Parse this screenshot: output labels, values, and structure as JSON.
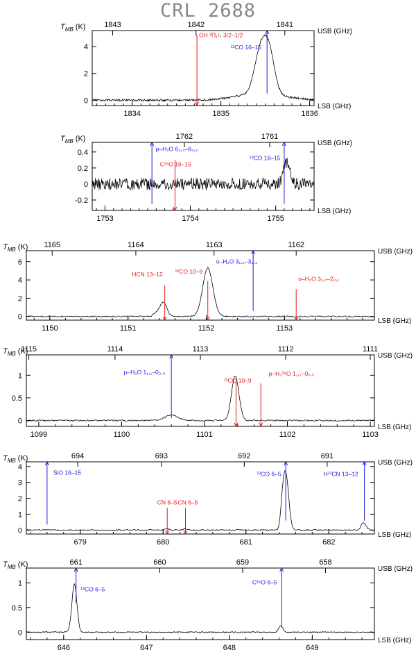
{
  "title": "CRL 2688",
  "colors": {
    "red": "#e0191c",
    "blue": "#1c1ce0",
    "spectrum": "#000000"
  },
  "chart_data": [
    {
      "type": "line",
      "ylabel_main": "T",
      "ylabel_sub": "MB",
      "ylabel_unit": "(K)",
      "usb_label": "USB (GHz)",
      "lsb_label": "LSB (GHz)",
      "xlim": [
        1833.55,
        1836.05
      ],
      "ylim": [
        -0.4,
        5.2
      ],
      "usb_ticks": [
        {
          "v": 1843,
          "x": 1833.78
        },
        {
          "v": 1842,
          "x": 1834.72
        },
        {
          "v": 1841,
          "x": 1835.72
        }
      ],
      "lsb_ticks": [
        1834,
        1835,
        1836
      ],
      "y_ticks": [
        0,
        2,
        4
      ],
      "peaks": [
        {
          "x": 1835.45,
          "w": 0.07,
          "a": 3.3
        },
        {
          "x": 1835.55,
          "w": 0.06,
          "a": 2.6
        },
        {
          "x": 1835.45,
          "w": 0.28,
          "a": 0.45
        }
      ],
      "noise": 0.08,
      "seed": 11,
      "lines": [
        {
          "x": 1834.73,
          "color": "red",
          "from": 4.9,
          "to": -0.4,
          "arrow": "down",
          "label": "OH ²Π₁/₂ 3/2–1/2",
          "label_x": 1834.73,
          "label_y": 4.7,
          "anchor": "start"
        },
        {
          "x": 1835.52,
          "color": "blue",
          "from": 0.5,
          "to": 5.2,
          "arrow": "up",
          "label": "¹²CO 16–15",
          "label_x": 1835.48,
          "label_y": 3.8,
          "anchor": "end"
        }
      ]
    },
    {
      "type": "line",
      "ylabel_main": "T",
      "ylabel_sub": "MB",
      "ylabel_unit": "(K)",
      "usb_label": "USB (GHz)",
      "lsb_label": "LSB (GHz)",
      "xlim": [
        1752.85,
        1755.45
      ],
      "ylim": [
        -0.33,
        0.52
      ],
      "usb_ticks": [
        {
          "v": 1762,
          "x": 1753.93
        },
        {
          "v": 1761,
          "x": 1754.93
        }
      ],
      "lsb_ticks": [
        1753,
        1754,
        1755
      ],
      "y_ticks": [
        -0.2,
        0,
        0.2,
        0.4
      ],
      "peaks": [
        {
          "x": 1755.13,
          "w": 0.035,
          "a": 0.28
        }
      ],
      "noise": 0.075,
      "seed": 5,
      "lines": [
        {
          "x": 1753.55,
          "color": "blue",
          "from": -0.25,
          "to": 0.52,
          "arrow": "up",
          "label": "p–H₂O 6₃,₃–6₂,₄",
          "label_x": 1753.57,
          "label_y": 0.41,
          "anchor": "start"
        },
        {
          "x": 1753.82,
          "color": "red",
          "from": 0.3,
          "to": -0.33,
          "arrow": "down",
          "label": "C¹⁸O 16–15",
          "label_x": 1753.62,
          "label_y": 0.22,
          "anchor": "start"
        },
        {
          "x": 1755.1,
          "color": "blue",
          "from": -0.25,
          "to": 0.52,
          "arrow": "up",
          "label": "¹³CO 16–15",
          "label_x": 1755.08,
          "label_y": 0.3,
          "anchor": "end"
        }
      ]
    },
    {
      "type": "line",
      "ylabel_main": "T",
      "ylabel_sub": "MB",
      "ylabel_unit": "(K)",
      "usb_label": "USB (GHz)",
      "lsb_label": "LSB (GHz)",
      "xlim": [
        1149.7,
        1154.15
      ],
      "ylim": [
        -0.4,
        7.2
      ],
      "usb_ticks": [
        {
          "v": 1165,
          "x": 1150.03
        },
        {
          "v": 1164,
          "x": 1151.1
        },
        {
          "v": 1163,
          "x": 1152.1
        },
        {
          "v": 1162,
          "x": 1153.15
        }
      ],
      "lsb_ticks": [
        1150,
        1151,
        1152,
        1153
      ],
      "y_ticks": [
        0,
        2,
        4,
        6
      ],
      "peaks": [
        {
          "x": 1152.02,
          "w": 0.065,
          "a": 5.3
        },
        {
          "x": 1151.45,
          "w": 0.045,
          "a": 1.6
        },
        {
          "x": 1151.35,
          "w": 0.03,
          "a": 0.3
        }
      ],
      "noise": 0.07,
      "seed": 21,
      "lines": [
        {
          "x": 1151.47,
          "color": "red",
          "from": 3.4,
          "to": -0.4,
          "arrow": "down",
          "label": "HCN 13–12",
          "label_x": 1151.47,
          "label_y": 4.4,
          "anchor": "end"
        },
        {
          "x": 1152.02,
          "color": "red",
          "from": 3.9,
          "to": -0.4,
          "arrow": "down",
          "label": "¹²CO 10–9",
          "label_x": 1151.98,
          "label_y": 4.7,
          "anchor": "end"
        },
        {
          "x": 1152.6,
          "color": "blue",
          "from": 0.6,
          "to": 7.2,
          "arrow": "up",
          "label": "o–H₂O 3₁,₂–3₂,₁",
          "label_x": 1152.1,
          "label_y": 5.8,
          "anchor": "start"
        },
        {
          "x": 1153.15,
          "color": "red",
          "from": 3.0,
          "to": -0.4,
          "arrow": "down",
          "label": "o–H₂O 3₁,₂–2₂,₁",
          "label_x": 1153.15,
          "label_y": 3.9,
          "anchor": "start"
        }
      ]
    },
    {
      "type": "line",
      "ylabel_main": "T",
      "ylabel_sub": "MB",
      "ylabel_unit": "(K)",
      "usb_label": "USB (GHz)",
      "lsb_label": "LSB (GHz)",
      "xlim": [
        1098.85,
        1103.05
      ],
      "ylim": [
        -0.13,
        1.45
      ],
      "usb_ticks": [
        {
          "v": 1115,
          "x": 1098.88
        },
        {
          "v": 1114,
          "x": 1099.92
        },
        {
          "v": 1113,
          "x": 1100.95
        },
        {
          "v": 1112,
          "x": 1101.98
        },
        {
          "v": 1111,
          "x": 1103.0
        }
      ],
      "lsb_ticks": [
        1099,
        1100,
        1101,
        1102,
        1103
      ],
      "y_ticks": [
        0,
        0.5,
        1
      ],
      "peaks": [
        {
          "x": 1101.37,
          "w": 0.045,
          "a": 0.98
        },
        {
          "x": 1100.6,
          "w": 0.08,
          "a": 0.12
        }
      ],
      "noise": 0.015,
      "seed": 31,
      "lines": [
        {
          "x": 1100.6,
          "color": "blue",
          "from": 0.05,
          "to": 1.45,
          "arrow": "up",
          "label": "p–H₂O 1₁,₁–0₀,₀",
          "label_x": 1100.55,
          "label_y": 1.02,
          "anchor": "end"
        },
        {
          "x": 1101.38,
          "color": "red",
          "from": 0.85,
          "to": -0.13,
          "arrow": "down",
          "label": "¹³CO 10–9",
          "label_x": 1101.4,
          "label_y": 0.84,
          "anchor": "middle"
        },
        {
          "x": 1101.68,
          "color": "red",
          "from": 0.82,
          "to": -0.13,
          "arrow": "down",
          "label": "p–H₂¹⁸O 1₁,₁–0₀,₀",
          "label_x": 1101.75,
          "label_y": 0.99,
          "anchor": "start"
        }
      ]
    },
    {
      "type": "line",
      "ylabel_main": "T",
      "ylabel_sub": "MB",
      "ylabel_unit": "(K)",
      "usb_label": "USB (GHz)",
      "lsb_label": "LSB (GHz)",
      "xlim": [
        678.35,
        682.55
      ],
      "ylim": [
        -0.25,
        4.3
      ],
      "usb_ticks": [
        {
          "v": 694,
          "x": 678.97
        },
        {
          "v": 693,
          "x": 679.98
        },
        {
          "v": 692,
          "x": 680.98
        },
        {
          "v": 691,
          "x": 681.98
        }
      ],
      "lsb_ticks": [
        679,
        680,
        681,
        682
      ],
      "y_ticks": [
        0,
        1,
        2,
        3,
        4
      ],
      "peaks": [
        {
          "x": 681.48,
          "w": 0.035,
          "a": 3.6
        },
        {
          "x": 681.44,
          "w": 0.02,
          "a": 0.8
        },
        {
          "x": 682.42,
          "w": 0.03,
          "a": 0.45
        },
        {
          "x": 680.05,
          "w": 0.02,
          "a": 0.1
        },
        {
          "x": 680.27,
          "w": 0.02,
          "a": 0.08
        }
      ],
      "noise": 0.035,
      "seed": 41,
      "lines": [
        {
          "x": 678.6,
          "color": "blue",
          "from": 0.35,
          "to": 4.3,
          "arrow": "up",
          "label": "SiO 16–15",
          "label_x": 678.65,
          "label_y": 3.5,
          "anchor": "start"
        },
        {
          "x": 680.05,
          "color": "red",
          "from": 1.4,
          "to": -0.25,
          "arrow": "down",
          "label": "CN 6–5",
          "label_x": 680.05,
          "label_y": 1.6,
          "anchor": "middle"
        },
        {
          "x": 680.27,
          "color": "red",
          "from": 1.4,
          "to": -0.25,
          "arrow": "down",
          "label": "CN 6–5",
          "label_x": 680.3,
          "label_y": 1.6,
          "anchor": "middle"
        },
        {
          "x": 681.48,
          "color": "blue",
          "from": 0.6,
          "to": 4.3,
          "arrow": "up",
          "label": "¹²CO 6–5",
          "label_x": 681.45,
          "label_y": 3.4,
          "anchor": "end"
        },
        {
          "x": 682.43,
          "color": "blue",
          "from": 0.6,
          "to": 4.3,
          "arrow": "up",
          "label": "H¹³CN 13–12",
          "label_x": 682.38,
          "label_y": 3.4,
          "anchor": "end"
        }
      ]
    },
    {
      "type": "line",
      "ylabel_main": "T",
      "ylabel_sub": "MB",
      "ylabel_unit": "(K)",
      "usb_label": "USB (GHz)",
      "lsb_label": "LSB (GHz)",
      "xlim": [
        645.55,
        649.75
      ],
      "ylim": [
        -0.15,
        1.3
      ],
      "usb_ticks": [
        {
          "v": 661,
          "x": 646.15
        },
        {
          "v": 660,
          "x": 647.16
        },
        {
          "v": 659,
          "x": 648.16
        },
        {
          "v": 658,
          "x": 649.16
        }
      ],
      "lsb_ticks": [
        646,
        647,
        648,
        649
      ],
      "y_ticks": [
        0,
        0.5,
        1
      ],
      "peaks": [
        {
          "x": 646.13,
          "w": 0.03,
          "a": 0.98
        },
        {
          "x": 648.62,
          "w": 0.025,
          "a": 0.12
        }
      ],
      "noise": 0.012,
      "seed": 51,
      "lines": [
        {
          "x": 646.15,
          "color": "blue",
          "from": 0.6,
          "to": 1.3,
          "arrow": "up",
          "label": "¹³CO 6–5",
          "label_x": 646.18,
          "label_y": 0.83,
          "anchor": "start"
        },
        {
          "x": 648.63,
          "color": "blue",
          "from": 0.1,
          "to": 1.3,
          "arrow": "up",
          "label": "C¹⁸O 6–5",
          "label_x": 648.6,
          "label_y": 0.97,
          "anchor": "end"
        }
      ]
    }
  ]
}
